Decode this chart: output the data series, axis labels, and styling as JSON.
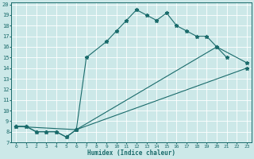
{
  "xlabel": "Humidex (Indice chaleur)",
  "bg_color": "#cce8e8",
  "grid_color": "#ffffff",
  "line_color": "#1a6b6b",
  "xlim": [
    -0.5,
    23.5
  ],
  "ylim": [
    7,
    20.2
  ],
  "xticks": [
    0,
    1,
    2,
    3,
    4,
    5,
    6,
    7,
    8,
    9,
    10,
    11,
    12,
    13,
    14,
    15,
    16,
    17,
    18,
    19,
    20,
    21,
    22,
    23
  ],
  "yticks": [
    7,
    8,
    9,
    10,
    11,
    12,
    13,
    14,
    15,
    16,
    17,
    18,
    19,
    20
  ],
  "line1_x": [
    0,
    1,
    2,
    3,
    4,
    5,
    6,
    7,
    9,
    10,
    11,
    12,
    13,
    14,
    15,
    16,
    17,
    18,
    19,
    20,
    21
  ],
  "line1_y": [
    8.5,
    8.5,
    8.0,
    8.0,
    8.0,
    7.5,
    8.2,
    15.0,
    16.5,
    17.5,
    18.5,
    19.5,
    19.0,
    18.5,
    19.2,
    18.0,
    17.5,
    17.0,
    17.0,
    16.0,
    15.0
  ],
  "line2_x": [
    0,
    1,
    2,
    3,
    4,
    5,
    6,
    23
  ],
  "line2_y": [
    8.5,
    8.5,
    8.0,
    8.0,
    8.0,
    7.5,
    8.2,
    14.0
  ],
  "line3_x": [
    0,
    6,
    20,
    23
  ],
  "line3_y": [
    8.5,
    8.2,
    16.0,
    14.5
  ]
}
